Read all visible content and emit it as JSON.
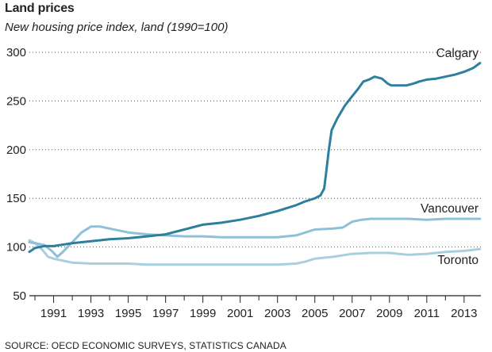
{
  "chart_data": {
    "type": "line",
    "title": "Land prices",
    "subtitle": "New housing price index, land (1990=100)",
    "source": "SOURCE: OECD ECONOMIC SURVEYS, STATISTICS CANADA",
    "xlabel": "",
    "ylabel": "",
    "xlim": [
      1989.7,
      2013.9
    ],
    "ylim": [
      50,
      300
    ],
    "yticks": [
      50,
      100,
      150,
      200,
      250,
      300
    ],
    "ytick_labels": [
      "50",
      "100",
      "150",
      "200",
      "250",
      "300"
    ],
    "xticks": [
      1991,
      1993,
      1995,
      1997,
      1999,
      2001,
      2003,
      2005,
      2007,
      2009,
      2011,
      2013
    ],
    "xtick_labels": [
      "1991",
      "1993",
      "1995",
      "1997",
      "1999",
      "2001",
      "2003",
      "2005",
      "2007",
      "2009",
      "2011",
      "2013"
    ],
    "grid": "horizontal dotted",
    "series": [
      {
        "name": "Calgary",
        "color": "#2e7f9e",
        "x": [
          1989.7,
          1990.0,
          1990.5,
          1991.0,
          1992.0,
          1993.0,
          1994.0,
          1995.0,
          1996.0,
          1997.0,
          1998.0,
          1999.0,
          2000.0,
          2001.0,
          2002.0,
          2003.0,
          2004.0,
          2004.5,
          2005.0,
          2005.3,
          2005.5,
          2005.6,
          2005.75,
          2005.9,
          2006.2,
          2006.6,
          2007.0,
          2007.3,
          2007.6,
          2007.9,
          2008.2,
          2008.6,
          2008.9,
          2009.1,
          2009.5,
          2009.9,
          2010.3,
          2010.6,
          2011.0,
          2011.5,
          2012.0,
          2012.5,
          2013.0,
          2013.5,
          2013.85
        ],
        "values": [
          95,
          99,
          101,
          101,
          104,
          106,
          108,
          109,
          111,
          113,
          118,
          123,
          125,
          128,
          132,
          137,
          143,
          147,
          150,
          153,
          160,
          175,
          200,
          220,
          232,
          245,
          255,
          262,
          270,
          272,
          275,
          273,
          268,
          266,
          266,
          266,
          268,
          270,
          272,
          273,
          275,
          277,
          280,
          284,
          289
        ]
      },
      {
        "name": "Vancouver",
        "color": "#8ec0d8",
        "x": [
          1989.7,
          1990.0,
          1990.5,
          1990.9,
          1991.2,
          1991.5,
          1992.0,
          1992.5,
          1993.0,
          1993.5,
          1994.0,
          1995.0,
          1996.0,
          1997.0,
          1998.0,
          1999.0,
          2000.0,
          2001.0,
          2002.0,
          2003.0,
          2004.0,
          2004.5,
          2005.0,
          2006.0,
          2006.5,
          2007.0,
          2007.5,
          2008.0,
          2009.0,
          2010.0,
          2011.0,
          2012.0,
          2013.0,
          2013.85
        ],
        "values": [
          105,
          104,
          102,
          96,
          90,
          95,
          105,
          115,
          121,
          121,
          119,
          115,
          113,
          112,
          111,
          111,
          110,
          110,
          110,
          110,
          112,
          115,
          118,
          119,
          120,
          126,
          128,
          129,
          129,
          129,
          128,
          129,
          129,
          129
        ]
      },
      {
        "name": "Toronto",
        "color": "#a8cfe0",
        "x": [
          1989.7,
          1990.0,
          1990.4,
          1990.7,
          1991.0,
          1991.5,
          1992.0,
          1993.0,
          1994.0,
          1995.0,
          1996.0,
          1997.0,
          1998.0,
          1999.0,
          2000.0,
          2001.0,
          2002.0,
          2003.0,
          2004.0,
          2004.5,
          2005.0,
          2006.0,
          2007.0,
          2008.0,
          2009.0,
          2009.5,
          2010.0,
          2011.0,
          2012.0,
          2013.0,
          2013.85
        ],
        "values": [
          107,
          104,
          97,
          90,
          88,
          86,
          84,
          83,
          83,
          83,
          82,
          82,
          82,
          82,
          82,
          82,
          82,
          82,
          83,
          85,
          88,
          90,
          93,
          94,
          94,
          93,
          92,
          93,
          95,
          96,
          98
        ]
      }
    ]
  }
}
